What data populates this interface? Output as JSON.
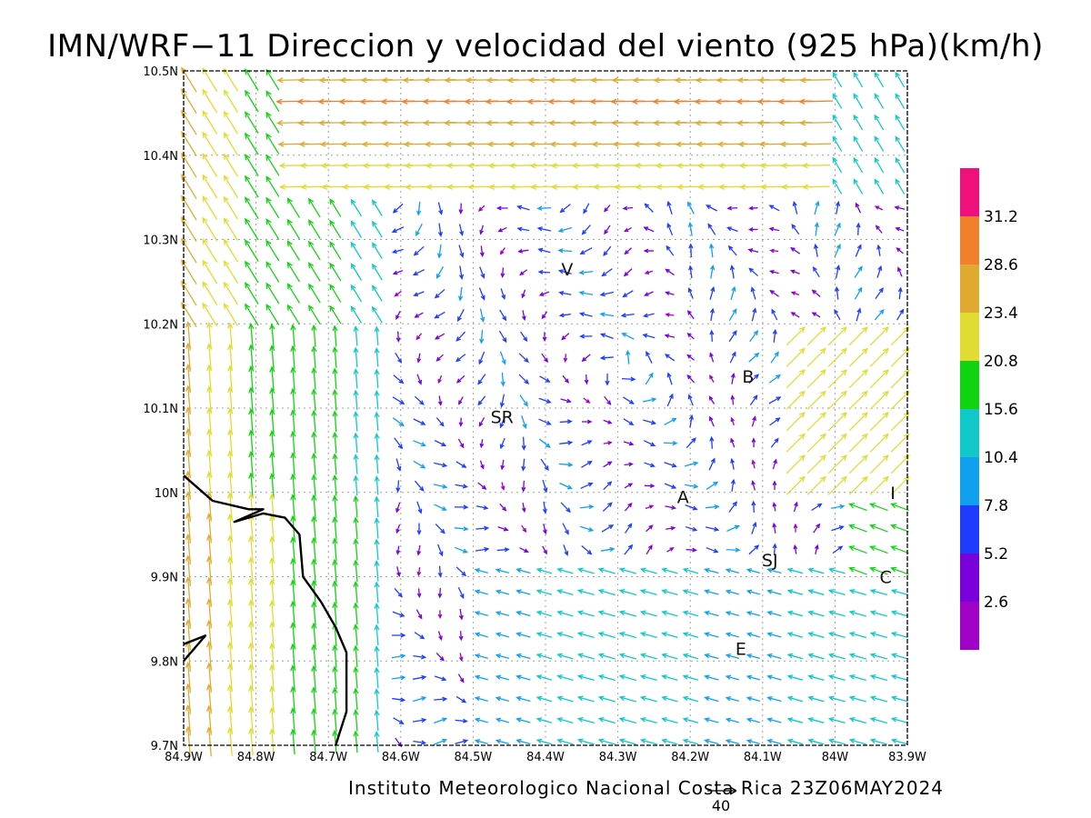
{
  "title": "IMN/WRF−11 Direccion y velocidad del viento (925 hPa)(km/h)",
  "footer": "Instituto Meteorologico Nacional Costa Rica 23Z06MAY2024",
  "reference_vector_label": "40",
  "chart_data": {
    "type": "vector-field-map",
    "variable": "Direccion y velocidad del viento",
    "level": "925 hPa",
    "units": "km/h",
    "model": "IMN/WRF-11",
    "valid_time": "23Z06MAY2024",
    "lon_range": [
      -84.9,
      -83.9
    ],
    "lat_range": [
      9.7,
      10.5
    ],
    "x_tick_labels": [
      "84.9W",
      "84.8W",
      "84.7W",
      "84.6W",
      "84.5W",
      "84.4W",
      "84.3W",
      "84.2W",
      "84.1W",
      "84W",
      "83.9W"
    ],
    "y_tick_labels": [
      "10.5N",
      "10.4N",
      "10.3N",
      "10.2N",
      "10.1N",
      "10N",
      "9.9N",
      "9.8N",
      "9.7N"
    ],
    "grid": true,
    "colorbar": {
      "placement": "right",
      "labels": [
        "31.2",
        "28.6",
        "23.4",
        "20.8",
        "15.6",
        "10.4",
        "7.8",
        "5.2",
        "2.6"
      ],
      "colors": [
        "#f0107c",
        "#f0802a",
        "#e0aa30",
        "#e0dc32",
        "#10d410",
        "#10c8c8",
        "#10a0f0",
        "#1e3cff",
        "#7a00dc",
        "#a000c8"
      ]
    },
    "reference_vector": 40,
    "locations": [
      {
        "label": "V",
        "lon": -84.37,
        "lat": 10.265
      },
      {
        "label": "B",
        "lon": -84.12,
        "lat": 10.138
      },
      {
        "label": "SR",
        "lon": -84.46,
        "lat": 10.09
      },
      {
        "label": "A",
        "lon": -84.21,
        "lat": 9.995
      },
      {
        "label": "SJ",
        "lon": -84.09,
        "lat": 9.92
      },
      {
        "label": "C",
        "lon": -83.93,
        "lat": 9.9
      },
      {
        "label": "E",
        "lon": -84.13,
        "lat": 9.815
      },
      {
        "label": "I",
        "lon": -83.92,
        "lat": 10.0
      }
    ],
    "coastline": [
      [
        -84.9,
        10.02
      ],
      [
        -84.86,
        9.99
      ],
      [
        -84.81,
        9.98
      ],
      [
        -84.79,
        9.98
      ],
      [
        -84.83,
        9.965
      ],
      [
        -84.79,
        9.975
      ],
      [
        -84.76,
        9.97
      ],
      [
        -84.74,
        9.95
      ],
      [
        -84.735,
        9.9
      ],
      [
        -84.71,
        9.87
      ],
      [
        -84.69,
        9.84
      ],
      [
        -84.675,
        9.81
      ],
      [
        -84.675,
        9.74
      ],
      [
        -84.69,
        9.7
      ]
    ],
    "coastline_inlet": [
      [
        -84.9,
        9.82
      ],
      [
        -84.87,
        9.83
      ],
      [
        -84.9,
        9.8
      ]
    ]
  }
}
